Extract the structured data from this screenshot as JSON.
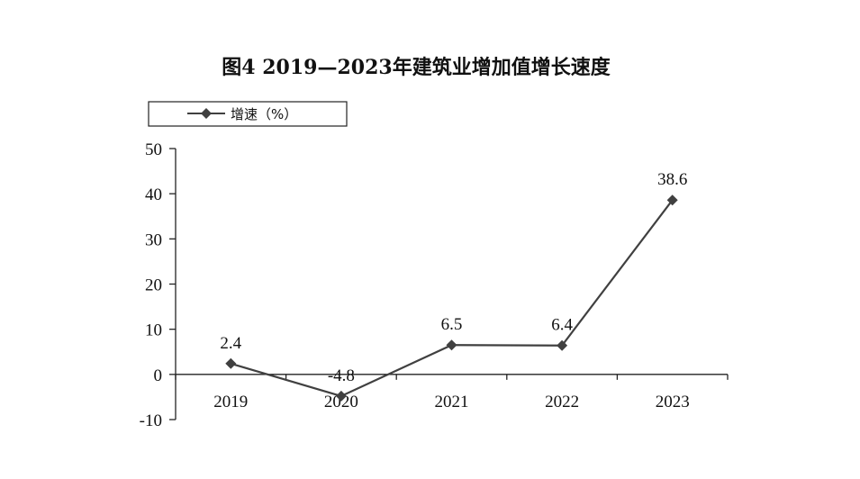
{
  "chart_data": {
    "type": "line",
    "title": "图4  2019—2023年建筑业增加值增长速度",
    "categories": [
      "2019",
      "2020",
      "2021",
      "2022",
      "2023"
    ],
    "series": [
      {
        "name": "增速（%）",
        "values": [
          2.4,
          -4.8,
          6.5,
          6.4,
          38.6
        ],
        "color": "#404040",
        "marker": "diamond"
      }
    ],
    "data_labels": [
      "2.4",
      "-4.8",
      "6.5",
      "6.4",
      "38.6"
    ],
    "ylim": [
      -10,
      50
    ],
    "yticks": [
      50,
      40,
      30,
      20,
      10,
      0,
      -10
    ],
    "grid": false,
    "legend_position": "top-left"
  }
}
